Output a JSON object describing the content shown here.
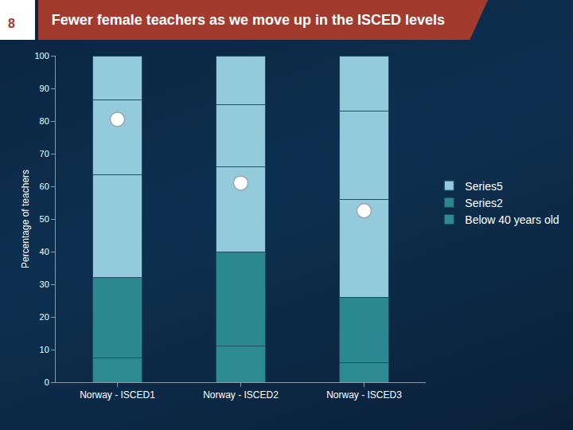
{
  "chart_data": {
    "type": "bar",
    "stacked": true,
    "title": "Fewer female teachers as we move up in the ISCED levels",
    "annotations": [
      {
        "text": "8"
      }
    ],
    "ylabel": "Percentage of teachers",
    "categories": [
      "Norway - ISCED1",
      "Norway - ISCED2",
      "Norway - ISCED3"
    ],
    "series": [
      {
        "name": "Below 40 years old",
        "color": "#2c8a92",
        "values": [
          7.5,
          11,
          6
        ]
      },
      {
        "name": "Series2",
        "color": "#2a8890",
        "values": [
          24.5,
          29,
          20
        ]
      },
      {
        "color": "#93cbdc",
        "values": [
          31.5,
          26,
          30
        ]
      },
      {
        "color": "#93cbdc",
        "values": [
          23,
          19,
          27
        ]
      },
      {
        "name": "Series5",
        "color": "#93cbdc",
        "values": [
          13.5,
          15,
          17
        ]
      },
      {
        "type": "scatter",
        "marker": "circle",
        "color": "#ffffff",
        "values": [
          80.5,
          61,
          52.5
        ]
      }
    ],
    "ylim": [
      0,
      100
    ],
    "yticks": [
      0,
      10,
      20,
      30,
      40,
      50,
      60,
      70,
      80,
      90,
      100
    ],
    "grid": false,
    "legend": "right"
  }
}
